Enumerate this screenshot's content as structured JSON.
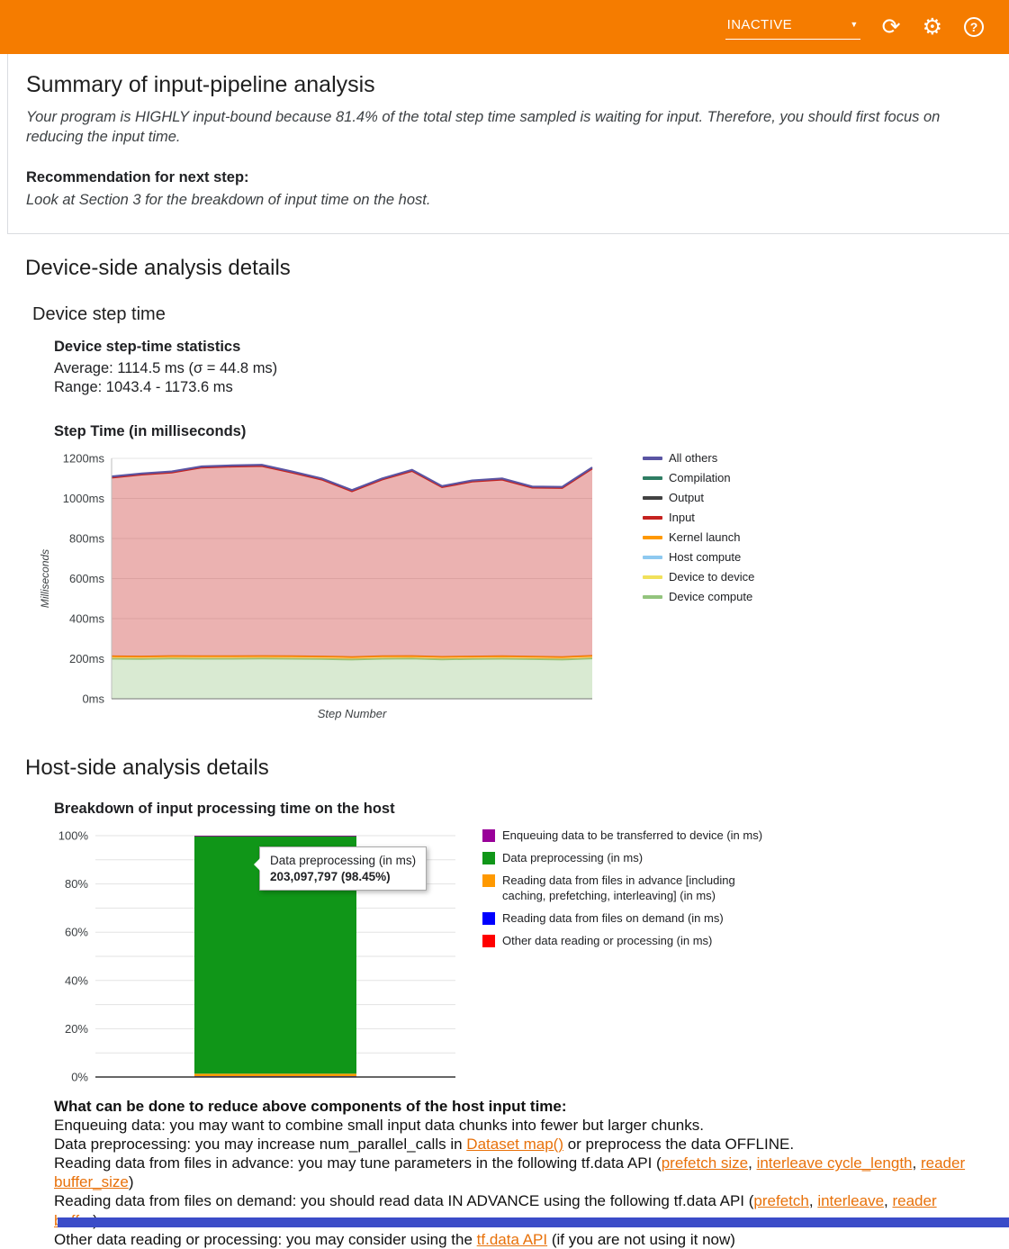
{
  "colors": {
    "header_bg": "#f57c00",
    "link": "#e8710a",
    "footer_bar": "#3b4cc8"
  },
  "header": {
    "status_label": "INACTIVE"
  },
  "summary": {
    "title": "Summary of input-pipeline analysis",
    "body": "Your program is HIGHLY input-bound because 81.4% of the total step time sampled is waiting for input. Therefore, you should first focus on reducing the input time.",
    "recommendation_label": "Recommendation for next step:",
    "recommendation_body": "Look at Section 3 for the breakdown of input time on the host."
  },
  "device_section": {
    "title": "Device-side analysis details",
    "subtitle": "Device step time",
    "stats_title": "Device step-time statistics",
    "stats_average": "Average: 1114.5 ms (σ = 44.8 ms)",
    "stats_range": "Range: 1043.4 - 1173.6 ms",
    "chart_title": "Step Time (in milliseconds)"
  },
  "host_section": {
    "title": "Host-side analysis details",
    "chart_title": "Breakdown of input processing time on the host",
    "tips": {
      "heading": "What can be done to reduce above components of the host input time:",
      "items": [
        {
          "segments": [
            {
              "text": "Enqueuing data: you may want to combine small input data chunks into fewer but larger chunks.",
              "link": false
            }
          ]
        },
        {
          "segments": [
            {
              "text": "Data preprocessing: you may increase num_parallel_calls in ",
              "link": false
            },
            {
              "text": "Dataset map()",
              "link": true
            },
            {
              "text": " or preprocess the data OFFLINE.",
              "link": false
            }
          ]
        },
        {
          "segments": [
            {
              "text": "Reading data from files in advance: you may tune parameters in the following tf.data API (",
              "link": false
            },
            {
              "text": "prefetch size",
              "link": true
            },
            {
              "text": ", ",
              "link": false
            },
            {
              "text": "interleave cycle_length",
              "link": true
            },
            {
              "text": ", ",
              "link": false
            },
            {
              "text": "reader buffer_size",
              "link": true
            },
            {
              "text": ")",
              "link": false
            }
          ]
        },
        {
          "segments": [
            {
              "text": "Reading data from files on demand: you should read data IN ADVANCE using the following tf.data API (",
              "link": false
            },
            {
              "text": "prefetch",
              "link": true
            },
            {
              "text": ", ",
              "link": false
            },
            {
              "text": "interleave",
              "link": true
            },
            {
              "text": ", ",
              "link": false
            },
            {
              "text": "reader buffer",
              "link": true
            },
            {
              "text": ")",
              "link": false
            }
          ]
        },
        {
          "segments": [
            {
              "text": "Other data reading or processing: you may consider using the ",
              "link": false
            },
            {
              "text": "tf.data API",
              "link": true
            },
            {
              "text": " (if you are not using it now)",
              "link": false
            }
          ]
        }
      ]
    }
  },
  "chart_data": [
    {
      "id": "device_step_time",
      "type": "area",
      "stacked": true,
      "title": "Step Time (in milliseconds)",
      "xlabel": "Step Number",
      "ylabel": "Milliseconds",
      "ylim": [
        0,
        1200
      ],
      "ytick_step": 200,
      "ytick_suffix": "ms",
      "grid": true,
      "legend_position": "right",
      "x": [
        0,
        1,
        2,
        3,
        4,
        5,
        6,
        7,
        8,
        9,
        10,
        11,
        12,
        13,
        14,
        15,
        16
      ],
      "series": [
        {
          "name": "Device compute",
          "color": "#93c47d",
          "values": [
            200,
            199,
            201,
            200,
            200,
            201,
            200,
            199,
            196,
            200,
            201,
            197,
            199,
            200,
            198,
            196,
            202
          ]
        },
        {
          "name": "Device to device",
          "color": "#f1e15b",
          "values": [
            0,
            0,
            0,
            0,
            0,
            0,
            0,
            0,
            0,
            0,
            0,
            0,
            0,
            0,
            0,
            0,
            0
          ]
        },
        {
          "name": "Host compute",
          "color": "#8ec9f0",
          "values": [
            0,
            0,
            0,
            0,
            0,
            0,
            0,
            0,
            0,
            0,
            0,
            0,
            0,
            0,
            0,
            0,
            0
          ]
        },
        {
          "name": "Kernel launch",
          "color": "#ff9900",
          "values": [
            12,
            12,
            12,
            12,
            12,
            12,
            12,
            12,
            12,
            12,
            12,
            12,
            12,
            12,
            12,
            12,
            12
          ]
        },
        {
          "name": "Input",
          "color": "#c5221f",
          "values": [
            892,
            908,
            916,
            942,
            947,
            949,
            917,
            883,
            828,
            882,
            924,
            847,
            873,
            882,
            844,
            844,
            935
          ]
        },
        {
          "name": "Output",
          "color": "#424242",
          "values": [
            0,
            0,
            0,
            0,
            0,
            0,
            0,
            0,
            0,
            0,
            0,
            0,
            0,
            0,
            0,
            0,
            0
          ]
        },
        {
          "name": "Compilation",
          "color": "#2f7d63",
          "values": [
            0,
            0,
            0,
            0,
            0,
            0,
            0,
            0,
            0,
            0,
            0,
            0,
            0,
            0,
            0,
            0,
            0
          ]
        },
        {
          "name": "All others",
          "color": "#5a55a3",
          "values": [
            6,
            6,
            6,
            6,
            6,
            6,
            6,
            6,
            6,
            6,
            6,
            6,
            6,
            6,
            6,
            6,
            6
          ]
        }
      ],
      "legend_series_order": [
        7,
        6,
        5,
        4,
        3,
        2,
        1,
        0
      ]
    },
    {
      "id": "host_input_breakdown",
      "type": "bar",
      "stacked": true,
      "title": "Breakdown of input processing time on the host",
      "ylim": [
        0,
        100
      ],
      "ytick_step": 10,
      "ylabel_step": 20,
      "ytick_suffix": "%",
      "categories": [
        ""
      ],
      "series": [
        {
          "name": "Other data reading or processing (in ms)",
          "color": "#ff0000",
          "values": [
            0.2
          ]
        },
        {
          "name": "Reading data from files on demand (in ms)",
          "color": "#0000ff",
          "values": [
            0.15
          ]
        },
        {
          "name": "Reading data from files in advance [including caching, prefetching, interleaving] (in ms)",
          "color": "#ff9900",
          "values": [
            1.0
          ]
        },
        {
          "name": "Data preprocessing (in ms)",
          "color": "#109618",
          "values": [
            98.45
          ]
        },
        {
          "name": "Enqueuing data to be transferred to device (in ms)",
          "color": "#990099",
          "values": [
            0.2
          ]
        }
      ],
      "legend_series_order": [
        4,
        3,
        2,
        1,
        0
      ],
      "tooltip": {
        "title": "Data preprocessing (in ms)",
        "value": "203,097,797 (98.45%)"
      }
    }
  ]
}
